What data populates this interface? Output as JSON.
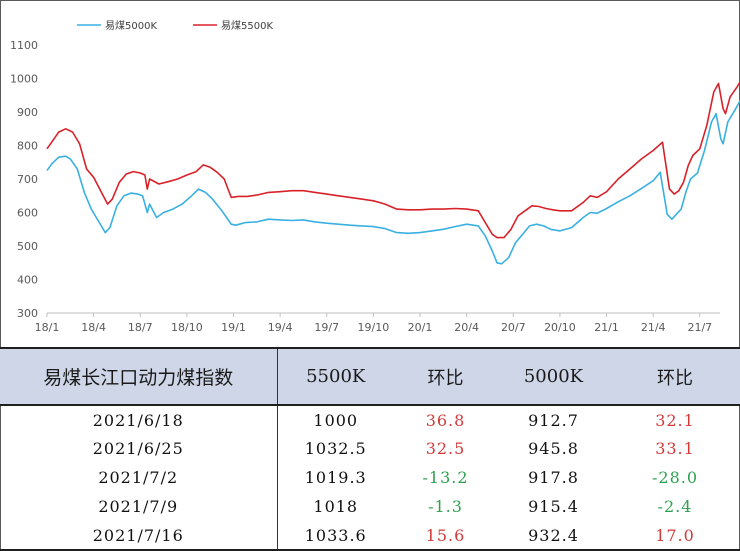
{
  "chart_data": {
    "type": "line",
    "legend_position": "top-left",
    "grid": false,
    "ylim": [
      300,
      1100
    ],
    "y_ticks": [
      "300",
      "400",
      "500",
      "600",
      "700",
      "800",
      "900",
      "1000",
      "1100"
    ],
    "x_ticks": [
      "18/1",
      "18/4",
      "18/7",
      "18/10",
      "19/1",
      "19/4",
      "19/7",
      "19/10",
      "20/1",
      "20/4",
      "20/7",
      "20/10",
      "21/1",
      "21/4",
      "21/7"
    ],
    "series": [
      {
        "name": "易煤5000K",
        "color": "#3ab0e2",
        "points": [
          [
            0,
            725
          ],
          [
            0.2,
            745
          ],
          [
            0.5,
            765
          ],
          [
            0.8,
            768
          ],
          [
            1.0,
            760
          ],
          [
            1.3,
            730
          ],
          [
            1.6,
            660
          ],
          [
            1.9,
            610
          ],
          [
            2.2,
            575
          ],
          [
            2.5,
            540
          ],
          [
            2.7,
            555
          ],
          [
            3.0,
            620
          ],
          [
            3.3,
            650
          ],
          [
            3.6,
            658
          ],
          [
            3.9,
            655
          ],
          [
            4.1,
            650
          ],
          [
            4.3,
            600
          ],
          [
            4.4,
            625
          ],
          [
            4.7,
            585
          ],
          [
            5.0,
            600
          ],
          [
            5.4,
            610
          ],
          [
            5.8,
            625
          ],
          [
            6.2,
            650
          ],
          [
            6.5,
            670
          ],
          [
            6.8,
            660
          ],
          [
            7.1,
            640
          ],
          [
            7.5,
            605
          ],
          [
            7.9,
            565
          ],
          [
            8.1,
            562
          ],
          [
            8.5,
            570
          ],
          [
            9.0,
            572
          ],
          [
            9.5,
            580
          ],
          [
            10.0,
            578
          ],
          [
            10.5,
            576
          ],
          [
            11.0,
            578
          ],
          [
            11.5,
            572
          ],
          [
            12.0,
            568
          ],
          [
            12.5,
            565
          ],
          [
            13.0,
            562
          ],
          [
            13.5,
            560
          ],
          [
            14.0,
            558
          ],
          [
            14.5,
            552
          ],
          [
            15.0,
            540
          ],
          [
            15.5,
            538
          ],
          [
            16.0,
            540
          ],
          [
            16.5,
            545
          ],
          [
            17.0,
            550
          ],
          [
            17.5,
            558
          ],
          [
            18.0,
            565
          ],
          [
            18.5,
            560
          ],
          [
            18.8,
            530
          ],
          [
            19.1,
            485
          ],
          [
            19.3,
            450
          ],
          [
            19.5,
            447
          ],
          [
            19.8,
            465
          ],
          [
            20.1,
            510
          ],
          [
            20.4,
            535
          ],
          [
            20.7,
            560
          ],
          [
            21.0,
            565
          ],
          [
            21.3,
            560
          ],
          [
            21.6,
            550
          ],
          [
            22.0,
            545
          ],
          [
            22.5,
            555
          ],
          [
            23.0,
            585
          ],
          [
            23.3,
            600
          ],
          [
            23.6,
            598
          ],
          [
            24.0,
            612
          ],
          [
            24.5,
            632
          ],
          [
            25.0,
            650
          ],
          [
            25.5,
            672
          ],
          [
            26.0,
            695
          ],
          [
            26.3,
            720
          ],
          [
            26.6,
            595
          ],
          [
            26.8,
            580
          ],
          [
            27.0,
            595
          ],
          [
            27.2,
            610
          ],
          [
            27.4,
            660
          ],
          [
            27.6,
            700
          ],
          [
            27.9,
            718
          ],
          [
            28.2,
            785
          ],
          [
            28.5,
            870
          ],
          [
            28.7,
            895
          ],
          [
            28.9,
            820
          ],
          [
            29.0,
            805
          ],
          [
            29.2,
            870
          ],
          [
            29.5,
            905
          ],
          [
            29.8,
            943
          ],
          [
            30.0,
            930
          ],
          [
            30.2,
            915
          ],
          [
            30.4,
            925
          ],
          [
            30.6,
            935
          ]
        ]
      },
      {
        "name": "易煤5500K",
        "color": "#d8222a",
        "points": [
          [
            0,
            790
          ],
          [
            0.2,
            810
          ],
          [
            0.5,
            840
          ],
          [
            0.8,
            850
          ],
          [
            1.1,
            840
          ],
          [
            1.4,
            805
          ],
          [
            1.7,
            730
          ],
          [
            2.0,
            705
          ],
          [
            2.3,
            665
          ],
          [
            2.6,
            625
          ],
          [
            2.8,
            640
          ],
          [
            3.1,
            690
          ],
          [
            3.4,
            715
          ],
          [
            3.7,
            722
          ],
          [
            4.0,
            718
          ],
          [
            4.2,
            712
          ],
          [
            4.3,
            670
          ],
          [
            4.4,
            700
          ],
          [
            4.8,
            685
          ],
          [
            5.2,
            692
          ],
          [
            5.6,
            700
          ],
          [
            6.0,
            712
          ],
          [
            6.4,
            722
          ],
          [
            6.7,
            742
          ],
          [
            7.0,
            735
          ],
          [
            7.3,
            720
          ],
          [
            7.6,
            700
          ],
          [
            7.9,
            645
          ],
          [
            8.2,
            648
          ],
          [
            8.6,
            648
          ],
          [
            9.0,
            652
          ],
          [
            9.5,
            660
          ],
          [
            10.0,
            662
          ],
          [
            10.5,
            665
          ],
          [
            11.0,
            665
          ],
          [
            11.5,
            660
          ],
          [
            12.0,
            655
          ],
          [
            12.5,
            650
          ],
          [
            13.0,
            645
          ],
          [
            13.5,
            640
          ],
          [
            14.0,
            635
          ],
          [
            14.5,
            625
          ],
          [
            15.0,
            610
          ],
          [
            15.5,
            608
          ],
          [
            16.0,
            608
          ],
          [
            16.5,
            610
          ],
          [
            17.0,
            610
          ],
          [
            17.5,
            612
          ],
          [
            18.0,
            610
          ],
          [
            18.5,
            605
          ],
          [
            18.8,
            570
          ],
          [
            19.1,
            535
          ],
          [
            19.3,
            525
          ],
          [
            19.6,
            525
          ],
          [
            19.9,
            550
          ],
          [
            20.2,
            590
          ],
          [
            20.5,
            605
          ],
          [
            20.8,
            620
          ],
          [
            21.1,
            618
          ],
          [
            21.4,
            612
          ],
          [
            21.7,
            608
          ],
          [
            22.0,
            605
          ],
          [
            22.5,
            605
          ],
          [
            23.0,
            630
          ],
          [
            23.3,
            650
          ],
          [
            23.6,
            645
          ],
          [
            24.0,
            662
          ],
          [
            24.5,
            700
          ],
          [
            25.0,
            730
          ],
          [
            25.5,
            760
          ],
          [
            26.0,
            785
          ],
          [
            26.4,
            810
          ],
          [
            26.7,
            670
          ],
          [
            26.9,
            655
          ],
          [
            27.1,
            665
          ],
          [
            27.3,
            690
          ],
          [
            27.5,
            740
          ],
          [
            27.7,
            770
          ],
          [
            28.0,
            790
          ],
          [
            28.3,
            860
          ],
          [
            28.6,
            960
          ],
          [
            28.8,
            985
          ],
          [
            29.0,
            910
          ],
          [
            29.1,
            895
          ],
          [
            29.3,
            945
          ],
          [
            29.6,
            975
          ],
          [
            29.9,
            1010
          ],
          [
            30.1,
            1005
          ],
          [
            30.3,
            1020
          ],
          [
            30.5,
            1025
          ],
          [
            30.7,
            1030
          ]
        ]
      }
    ],
    "table": {
      "headers": [
        "易煤长江口动力煤指数",
        "5500K",
        "环比",
        "5000K",
        "环比"
      ],
      "rows": [
        [
          "2021/6/18",
          "1000",
          "36.8",
          "912.7",
          "32.1"
        ],
        [
          "2021/6/25",
          "1032.5",
          "32.5",
          "945.8",
          "33.1"
        ],
        [
          "2021/7/2",
          "1019.3",
          "-13.2",
          "917.8",
          "-28.0"
        ],
        [
          "2021/7/9",
          "1018",
          "-1.3",
          "915.4",
          "-2.4"
        ],
        [
          "2021/7/16",
          "1033.6",
          "15.6",
          "932.4",
          "17.0"
        ]
      ]
    }
  }
}
